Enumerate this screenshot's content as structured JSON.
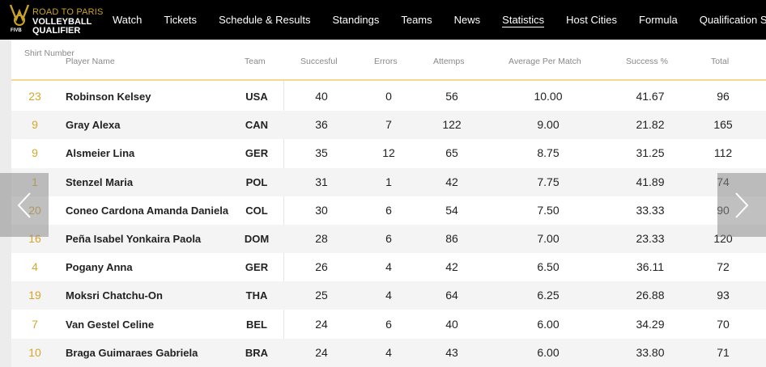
{
  "logo": {
    "line1": "ROAD TO PARIS",
    "line2": "VOLLEYBALL",
    "line3": "QUALIFIER",
    "badge": "FIVB",
    "accent": "#c9a227"
  },
  "nav": {
    "items": [
      {
        "label": "Watch"
      },
      {
        "label": "Tickets"
      },
      {
        "label": "Schedule & Results"
      },
      {
        "label": "Standings"
      },
      {
        "label": "Teams"
      },
      {
        "label": "News"
      },
      {
        "label": "Statistics",
        "active": true
      },
      {
        "label": "Host Cities"
      },
      {
        "label": "Formula"
      },
      {
        "label": "Qualification S"
      }
    ]
  },
  "table": {
    "headers": {
      "shirt": "Shirt Number",
      "name": "Player Name",
      "team": "Team",
      "successful": "Succesful",
      "errors": "Errors",
      "attempts": "Attemps",
      "avg": "Average Per Match",
      "success_pct": "Success %",
      "total": "Total"
    },
    "rows": [
      {
        "shirt": "23",
        "name": "Robinson Kelsey",
        "team": "USA",
        "successful": "40",
        "errors": "0",
        "attempts": "56",
        "avg": "10.00",
        "success_pct": "41.67",
        "total": "96"
      },
      {
        "shirt": "9",
        "name": "Gray Alexa",
        "team": "CAN",
        "successful": "36",
        "errors": "7",
        "attempts": "122",
        "avg": "9.00",
        "success_pct": "21.82",
        "total": "165"
      },
      {
        "shirt": "9",
        "name": "Alsmeier Lina",
        "team": "GER",
        "successful": "35",
        "errors": "12",
        "attempts": "65",
        "avg": "8.75",
        "success_pct": "31.25",
        "total": "112"
      },
      {
        "shirt": "1",
        "name": "Stenzel Maria",
        "team": "POL",
        "successful": "31",
        "errors": "1",
        "attempts": "42",
        "avg": "7.75",
        "success_pct": "41.89",
        "total": "74"
      },
      {
        "shirt": "20",
        "name": "Coneo Cardona Amanda Daniela",
        "team": "COL",
        "successful": "30",
        "errors": "6",
        "attempts": "54",
        "avg": "7.50",
        "success_pct": "33.33",
        "total": "90"
      },
      {
        "shirt": "16",
        "name": "Peña Isabel Yonkaira Paola",
        "team": "DOM",
        "successful": "28",
        "errors": "6",
        "attempts": "86",
        "avg": "7.00",
        "success_pct": "23.33",
        "total": "120"
      },
      {
        "shirt": "4",
        "name": "Pogany Anna",
        "team": "GER",
        "successful": "26",
        "errors": "4",
        "attempts": "42",
        "avg": "6.50",
        "success_pct": "36.11",
        "total": "72"
      },
      {
        "shirt": "19",
        "name": "Moksri Chatchu-On",
        "team": "THA",
        "successful": "25",
        "errors": "4",
        "attempts": "64",
        "avg": "6.25",
        "success_pct": "26.88",
        "total": "93"
      },
      {
        "shirt": "7",
        "name": "Van Gestel Celine",
        "team": "BEL",
        "successful": "24",
        "errors": "6",
        "attempts": "40",
        "avg": "6.00",
        "success_pct": "34.29",
        "total": "70"
      },
      {
        "shirt": "10",
        "name": "Braga Guimaraes Gabriela",
        "team": "BRA",
        "successful": "24",
        "errors": "4",
        "attempts": "43",
        "avg": "6.00",
        "success_pct": "33.80",
        "total": "71"
      }
    ]
  },
  "carousel": {
    "prev_icon": "chevron-left-icon",
    "next_icon": "chevron-right-icon"
  }
}
